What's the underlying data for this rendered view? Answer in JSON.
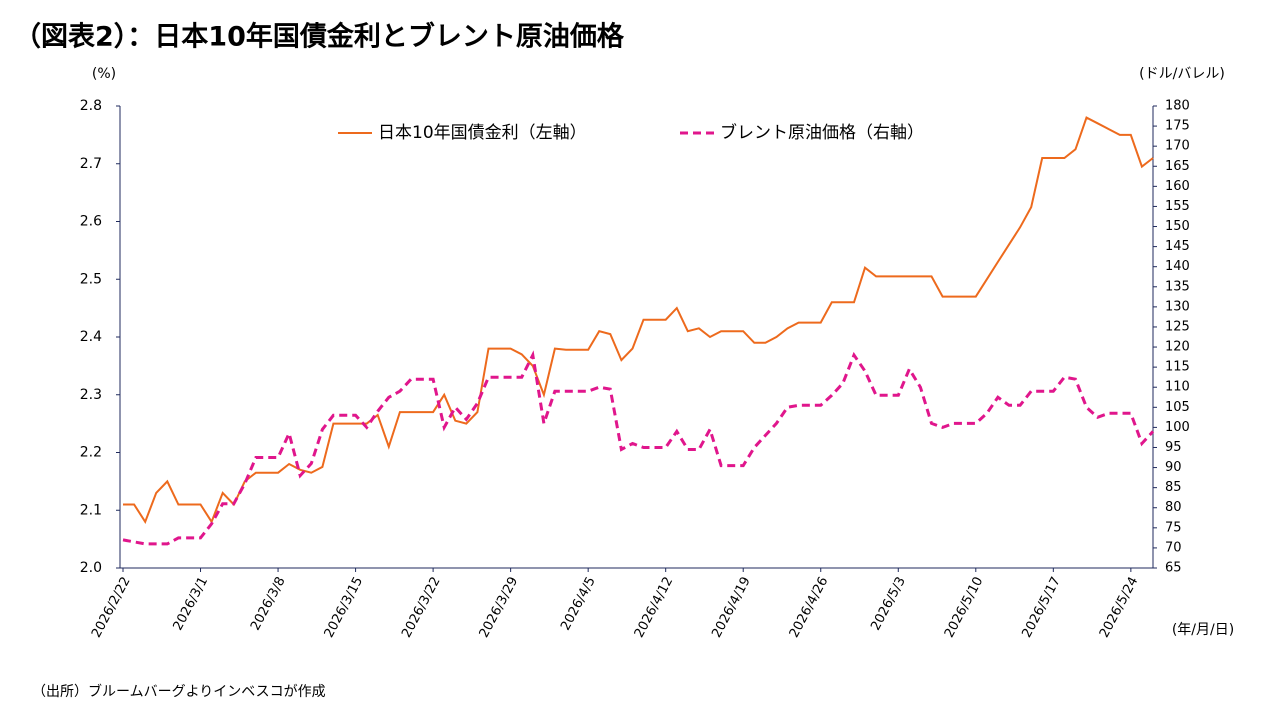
{
  "chart_data": {
    "type": "line",
    "title": "（図表2）：日本10年国債金利とブレント原油価格",
    "y_label": "(%)",
    "y2_label": "(ドル/バレル)",
    "x_label": "(年/月/日)",
    "source": "（出所）ブルームバーグよりインベスコが作成",
    "x": [
      "2026/2/22",
      "2026/2/23",
      "2026/2/24",
      "2026/2/25",
      "2026/2/26",
      "2026/2/27",
      "2026/2/28",
      "2026/3/1",
      "2026/3/2",
      "2026/3/3",
      "2026/3/4",
      "2026/3/5",
      "2026/3/6",
      "2026/3/7",
      "2026/3/8",
      "2026/3/9",
      "2026/3/10",
      "2026/3/11",
      "2026/3/12",
      "2026/3/13",
      "2026/3/14",
      "2026/3/15",
      "2026/3/16",
      "2026/3/17",
      "2026/3/18",
      "2026/3/19",
      "2026/3/20",
      "2026/3/21",
      "2026/3/22",
      "2026/3/23",
      "2026/3/24",
      "2026/3/25",
      "2026/3/26",
      "2026/3/27",
      "2026/3/28",
      "2026/3/29",
      "2026/3/30",
      "2026/3/31",
      "2026/4/1",
      "2026/4/2",
      "2026/4/3",
      "2026/4/4",
      "2026/4/5",
      "2026/4/6",
      "2026/4/7",
      "2026/4/8",
      "2026/4/9",
      "2026/4/10",
      "2026/4/11",
      "2026/4/12",
      "2026/4/13",
      "2026/4/14",
      "2026/4/15",
      "2026/4/16",
      "2026/4/17",
      "2026/4/18",
      "2026/4/19",
      "2026/4/20",
      "2026/4/21",
      "2026/4/22",
      "2026/4/23",
      "2026/4/24",
      "2026/4/25",
      "2026/4/26",
      "2026/4/27",
      "2026/4/28",
      "2026/4/29",
      "2026/4/30",
      "2026/5/1",
      "2026/5/2",
      "2026/5/3",
      "2026/5/4",
      "2026/5/5",
      "2026/5/6",
      "2026/5/7",
      "2026/5/8",
      "2026/5/9",
      "2026/5/10",
      "2026/5/11",
      "2026/5/12",
      "2026/5/13",
      "2026/5/14",
      "2026/5/15",
      "2026/5/16",
      "2026/5/17",
      "2026/5/18",
      "2026/5/19",
      "2026/5/20",
      "2026/5/21",
      "2026/5/22",
      "2026/5/23",
      "2026/5/24",
      "2026/5/25",
      "2026/5/26"
    ],
    "xlim": [
      "2026/2/22",
      "2026/5/26"
    ],
    "xticks": [
      "2026/2/22",
      "2026/3/1",
      "2026/3/8",
      "2026/3/15",
      "2026/3/22",
      "2026/3/29",
      "2026/4/5",
      "2026/4/12",
      "2026/4/19",
      "2026/4/26",
      "2026/5/3",
      "2026/5/10",
      "2026/5/17",
      "2026/5/24"
    ],
    "ylim": [
      2.0,
      2.8
    ],
    "yticks": [
      {
        "value": 2.0,
        "label": "2.0"
      },
      2.1,
      2.2,
      2.3,
      2.4,
      2.5,
      2.6,
      2.7,
      2.8
    ],
    "y2lim": [
      65,
      180
    ],
    "y2ticks": [
      65,
      70,
      75,
      80,
      85,
      90,
      95,
      100,
      105,
      110,
      115,
      120,
      125,
      130,
      135,
      140,
      145,
      150,
      155,
      160,
      165,
      170,
      175,
      180
    ],
    "grid": false,
    "series": [
      {
        "name": "日本10年国債金利（左軸）",
        "color": "#ed6a1d",
        "dash": false,
        "axis": "y",
        "values": [
          2.11,
          2.11,
          2.08,
          2.13,
          2.15,
          2.11,
          2.11,
          2.11,
          2.08,
          2.13,
          2.11,
          2.15,
          2.165,
          2.165,
          2.165,
          2.18,
          2.17,
          2.165,
          2.175,
          2.25,
          2.25,
          2.25,
          2.25,
          2.265,
          2.21,
          2.27,
          2.27,
          2.27,
          2.27,
          2.3,
          2.255,
          2.25,
          2.27,
          2.38,
          2.38,
          2.38,
          2.37,
          2.35,
          2.3,
          2.38,
          2.378,
          2.378,
          2.378,
          2.41,
          2.405,
          2.36,
          2.38,
          2.43,
          2.43,
          2.43,
          2.45,
          2.41,
          2.415,
          2.4,
          2.41,
          2.41,
          2.41,
          2.39,
          2.39,
          2.4,
          2.415,
          2.425,
          2.425,
          2.425,
          2.46,
          2.46,
          2.46,
          2.52,
          2.505,
          2.505,
          2.505,
          2.505,
          2.505,
          2.505,
          2.47,
          2.47,
          2.47,
          2.47,
          2.5,
          2.53,
          2.56,
          2.59,
          2.625,
          2.71,
          2.71,
          2.71,
          2.725,
          2.78,
          2.77,
          2.76,
          2.75,
          2.75,
          2.695,
          2.71
        ]
      },
      {
        "name": "ブレント原油価格（右軸）",
        "color": "#e0168c",
        "dash": true,
        "axis": "y2",
        "values": [
          72,
          71.5,
          71,
          71,
          71,
          72.5,
          72.5,
          72.5,
          76,
          81,
          81,
          86,
          92.5,
          92.5,
          92.5,
          98.5,
          88,
          91,
          99.5,
          103,
          103,
          103,
          100,
          104,
          107.5,
          109,
          112,
          112,
          112,
          100,
          105,
          102,
          106,
          112.5,
          112.5,
          112.5,
          112.5,
          118,
          101,
          109,
          109,
          109,
          109,
          110,
          109.5,
          94.5,
          96,
          95,
          95,
          95,
          99,
          94.5,
          94.5,
          99.5,
          90.5,
          90.5,
          90.5,
          95,
          98,
          101,
          105,
          105.5,
          105.5,
          105.5,
          108,
          111,
          118,
          114,
          108,
          108,
          108,
          114.5,
          110,
          101,
          100,
          101,
          101,
          101,
          103.5,
          107.5,
          105.5,
          105.5,
          109,
          109,
          109,
          112.5,
          112,
          105,
          102.5,
          103.5,
          103.5,
          103.5,
          96,
          99
        ]
      }
    ]
  }
}
